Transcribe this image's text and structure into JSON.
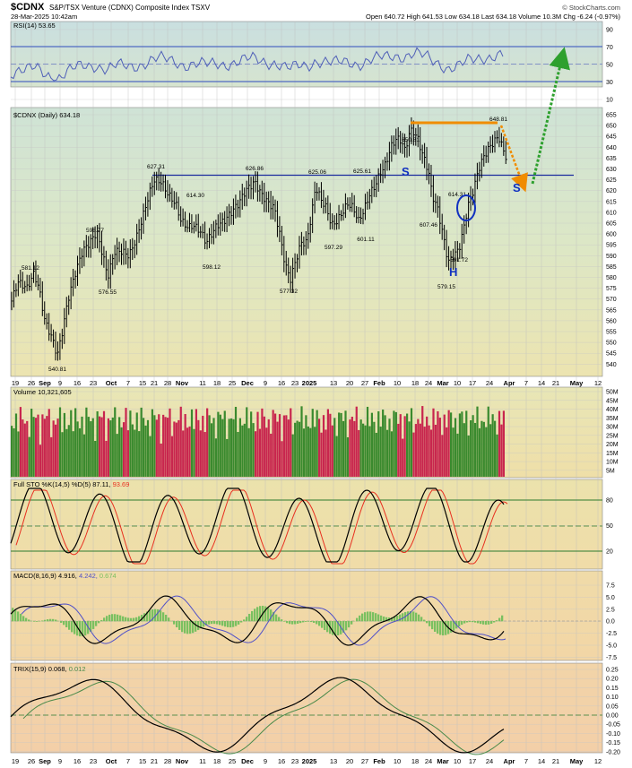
{
  "header": {
    "symbol": "$CDNX",
    "name": "S&P/TSX Venture (CDNX) Composite Index  TSXV",
    "date": "28-Mar-2025 10:42am",
    "credit": "© StockCharts.com",
    "quote": "Open 640.72  High 641.53  Low 634.18  Last 634.18  Volume 10.3M  Chg -6.24 (-0.97%)"
  },
  "x_axis": {
    "labels": [
      "19",
      "26",
      "Sep",
      "9",
      "16",
      "23",
      "Oct",
      "7",
      "15",
      "21",
      "28",
      "Nov",
      "11",
      "18",
      "25",
      "Dec",
      "9",
      "16",
      "23",
      "2025",
      "13",
      "20",
      "27",
      "Feb",
      "10",
      "18",
      "24",
      "Mar",
      "10",
      "17",
      "24",
      "Apr",
      "7",
      "14",
      "21",
      "May",
      "12"
    ],
    "bold": [
      "Sep",
      "Oct",
      "Nov",
      "Dec",
      "2025",
      "Feb",
      "Mar",
      "Apr",
      "May"
    ]
  },
  "panels": {
    "rsi": {
      "label": "RSI(14) 53.65",
      "ticks": [
        "90",
        "70",
        "50",
        "30",
        "10"
      ]
    },
    "price": {
      "label": "$CDNX (Daily) 634.18",
      "ticks": [
        "655",
        "650",
        "645",
        "640",
        "635",
        "630",
        "625",
        "620",
        "615",
        "610",
        "605",
        "600",
        "595",
        "590",
        "585",
        "580",
        "575",
        "570",
        "565",
        "560",
        "555",
        "550",
        "545",
        "540"
      ],
      "price_labels": [
        "581.12",
        "540.81",
        "598.77",
        "576.55",
        "627.31",
        "614.30",
        "598.12",
        "626.86",
        "577.32",
        "625.06",
        "597.29",
        "625.61",
        "601.11",
        "650.81",
        "607.46",
        "614.31",
        "579.15",
        "591.72",
        "648.81"
      ],
      "markers": {
        "s1": "S",
        "s2": "S",
        "h": "H"
      }
    },
    "volume": {
      "label": "Volume 10,321,605",
      "ticks": [
        "50M",
        "45M",
        "40M",
        "35M",
        "30M",
        "25M",
        "20M",
        "15M",
        "10M",
        "5M"
      ]
    },
    "sto": {
      "label": "Full STO %K(14,5) %D(5) 87.11,",
      "label_d": "93.69",
      "ticks": [
        "80",
        "50",
        "20"
      ]
    },
    "macd": {
      "label": "MACD(8,16,9) 4.916,",
      "label_signal": "4.242,",
      "label_hist": "0.674",
      "ticks": [
        "7.5",
        "5.0",
        "2.5",
        "0.0",
        "-2.5",
        "-5.0",
        "-7.5"
      ]
    },
    "trix": {
      "label": "TRIX(15,9) 0.068,",
      "label_signal": "0.012",
      "ticks": [
        "0.25",
        "0.20",
        "0.15",
        "0.10",
        "0.05",
        "0.00",
        "-0.05",
        "-0.10",
        "-0.15",
        "-0.20"
      ]
    }
  },
  "colors": {
    "up": "#3a8a2e",
    "down": "#c8264e",
    "rsi_line": "#5060b8",
    "orange": "#f08c00",
    "green_arrow": "#2ea02e",
    "blue": "#1030c0"
  },
  "chart_data": [
    {
      "type": "line",
      "title": "$CDNX (Daily) 634.18",
      "ylim": [
        535,
        657
      ],
      "x": [
        "2024-08-26",
        "2024-09-06",
        "2024-09-20",
        "2024-10-02",
        "2024-10-21",
        "2024-11-04",
        "2024-11-14",
        "2024-12-02",
        "2024-12-19",
        "2025-01-06",
        "2025-01-17",
        "2025-01-29",
        "2025-02-11",
        "2025-03-03",
        "2025-03-10",
        "2025-03-14",
        "2025-03-25",
        "2025-03-28"
      ],
      "series": [
        {
          "values": [
            581.12,
            540.81,
            598.77,
            576.55,
            627.31,
            614.3,
            598.12,
            626.86,
            577.32,
            625.06,
            597.29,
            625.61,
            650.81,
            607.46,
            579.15,
            591.72,
            648.81,
            634.18
          ]
        }
      ],
      "annotations": [
        "S",
        "S",
        "H"
      ]
    },
    {
      "type": "line",
      "title": "RSI(14) 53.65",
      "ylim": [
        10,
        90
      ],
      "series": [
        {
          "values": [
            53.65
          ]
        }
      ]
    },
    {
      "type": "bar",
      "title": "Volume 10,321,605",
      "ylim": [
        0,
        50000000
      ],
      "series": [
        {
          "values": [
            10321605
          ]
        }
      ]
    },
    {
      "type": "line",
      "title": "Full STO %K(14,5) %D(5)",
      "series": [
        {
          "name": "%K",
          "values": [
            87.11
          ]
        },
        {
          "name": "%D",
          "values": [
            93.69
          ]
        }
      ]
    },
    {
      "type": "line",
      "title": "MACD(8,16,9)",
      "series": [
        {
          "name": "MACD",
          "values": [
            4.916
          ]
        },
        {
          "name": "Signal",
          "values": [
            4.242
          ]
        },
        {
          "name": "Histogram",
          "values": [
            0.674
          ]
        }
      ]
    },
    {
      "type": "line",
      "title": "TRIX(15,9)",
      "series": [
        {
          "name": "TRIX",
          "values": [
            0.068
          ]
        },
        {
          "name": "Signal",
          "values": [
            0.012
          ]
        }
      ]
    }
  ]
}
